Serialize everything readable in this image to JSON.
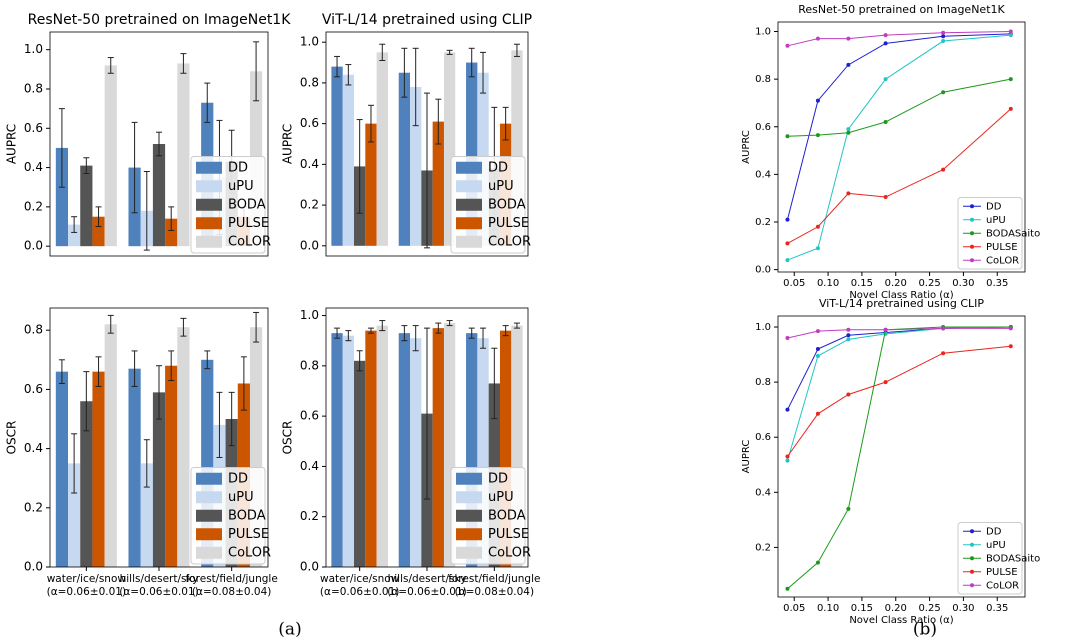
{
  "captions": [
    "(a)",
    "(b)"
  ],
  "chart_data": [
    {
      "type": "bar",
      "title": "ResNet-50 pretrained on ImageNet1K",
      "ylabel": "AUPRC",
      "categories": [
        null,
        null,
        null
      ],
      "ylim": [
        -0.05,
        1.09
      ],
      "yticks": [
        {
          "value": 0,
          "label": "0.0"
        },
        0.2,
        0.4,
        0.6,
        0.8,
        {
          "value": 1,
          "label": "1.0"
        }
      ],
      "legend": "lower right",
      "series": [
        {
          "name": "DD",
          "color": "#4f81bd",
          "values": [
            0.5,
            0.4,
            0.73
          ],
          "errors": [
            0.2,
            0.23,
            0.1
          ]
        },
        {
          "name": "uPU",
          "color": "#c6d9f1",
          "values": [
            0.11,
            0.18,
            0.35
          ],
          "errors": [
            0.04,
            0.2,
            0.29
          ]
        },
        {
          "name": "BODA",
          "color": "#555555",
          "values": [
            0.41,
            0.52,
            0.43
          ],
          "errors": [
            0.04,
            0.06,
            0.16
          ]
        },
        {
          "name": "PULSE",
          "color": "#cc5500",
          "values": [
            0.15,
            0.14,
            0.15
          ],
          "errors": [
            0.05,
            0.06,
            0.05
          ]
        },
        {
          "name": "CoLOR",
          "color": "#d9d9d9",
          "values": [
            0.92,
            0.93,
            0.89
          ],
          "errors": [
            0.04,
            0.05,
            0.15
          ]
        }
      ]
    },
    {
      "type": "bar",
      "title": "ViT-L/14 pretrained using CLIP",
      "ylabel": "AUPRC",
      "categories": [
        null,
        null,
        null
      ],
      "ylim": [
        -0.05,
        1.05
      ],
      "yticks": [
        {
          "value": 0,
          "label": "0.0"
        },
        0.2,
        0.4,
        0.6,
        0.8,
        {
          "value": 1,
          "label": "1.0"
        }
      ],
      "legend": "lower right",
      "series": [
        {
          "name": "DD",
          "color": "#4f81bd",
          "values": [
            0.88,
            0.85,
            0.9
          ],
          "errors": [
            0.05,
            0.12,
            0.07
          ]
        },
        {
          "name": "uPU",
          "color": "#c6d9f1",
          "values": [
            0.84,
            0.78,
            0.85
          ],
          "errors": [
            0.05,
            0.19,
            0.1
          ]
        },
        {
          "name": "BODA",
          "color": "#555555",
          "values": [
            0.39,
            0.37,
            0.38
          ],
          "errors": [
            0.23,
            0.38,
            0.3
          ]
        },
        {
          "name": "PULSE",
          "color": "#cc5500",
          "values": [
            0.6,
            0.61,
            0.6
          ],
          "errors": [
            0.09,
            0.11,
            0.08
          ]
        },
        {
          "name": "CoLOR",
          "color": "#d9d9d9",
          "values": [
            0.95,
            0.95,
            0.96
          ],
          "errors": [
            0.04,
            0.01,
            0.03
          ]
        }
      ]
    },
    {
      "type": "bar",
      "ylabel": "OSCR",
      "categories": [
        "water/ice/snow",
        "hills/desert/sky",
        "forest/field/jungle"
      ],
      "category_sublabels": [
        "(α=0.06±0.01)",
        "(α=0.06±0.01)",
        "(α=0.08±0.04)"
      ],
      "ylim": [
        0,
        0.875
      ],
      "yticks": [
        {
          "value": 0,
          "label": "0.0"
        },
        0.2,
        0.4,
        0.6,
        0.8
      ],
      "legend": "lower right",
      "series": [
        {
          "name": "DD",
          "color": "#4f81bd",
          "values": [
            0.66,
            0.67,
            0.7
          ],
          "errors": [
            0.04,
            0.06,
            0.03
          ]
        },
        {
          "name": "uPU",
          "color": "#c6d9f1",
          "values": [
            0.35,
            0.35,
            0.48
          ],
          "errors": [
            0.1,
            0.08,
            0.11
          ]
        },
        {
          "name": "BODA",
          "color": "#555555",
          "values": [
            0.56,
            0.59,
            0.5
          ],
          "errors": [
            0.1,
            0.09,
            0.09
          ]
        },
        {
          "name": "PULSE",
          "color": "#cc5500",
          "values": [
            0.66,
            0.68,
            0.62
          ],
          "errors": [
            0.05,
            0.05,
            0.09
          ]
        },
        {
          "name": "CoLOR",
          "color": "#d9d9d9",
          "values": [
            0.82,
            0.81,
            0.81
          ],
          "errors": [
            0.03,
            0.03,
            0.05
          ]
        }
      ]
    },
    {
      "type": "bar",
      "ylabel": "OSCR",
      "categories": [
        "water/ice/snow",
        "hills/desert/sky",
        "forest/field/jungle"
      ],
      "category_sublabels": [
        "(α=0.06±0.01)",
        "(α=0.06±0.01)",
        "(α=0.08±0.04)"
      ],
      "ylim": [
        0,
        1.03
      ],
      "yticks": [
        {
          "value": 0,
          "label": "0.0"
        },
        0.2,
        0.4,
        0.6,
        0.8,
        {
          "value": 1,
          "label": "1.0"
        }
      ],
      "legend": "lower right",
      "series": [
        {
          "name": "DD",
          "color": "#4f81bd",
          "values": [
            0.93,
            0.93,
            0.93
          ],
          "errors": [
            0.02,
            0.03,
            0.02
          ]
        },
        {
          "name": "uPU",
          "color": "#c6d9f1",
          "values": [
            0.92,
            0.91,
            0.91
          ],
          "errors": [
            0.02,
            0.05,
            0.04
          ]
        },
        {
          "name": "BODA",
          "color": "#555555",
          "values": [
            0.82,
            0.61,
            0.73
          ],
          "errors": [
            0.04,
            0.34,
            0.14
          ]
        },
        {
          "name": "PULSE",
          "color": "#cc5500",
          "values": [
            0.94,
            0.95,
            0.94
          ],
          "errors": [
            0.01,
            0.02,
            0.02
          ]
        },
        {
          "name": "CoLOR",
          "color": "#d9d9d9",
          "values": [
            0.96,
            0.97,
            0.96
          ],
          "errors": [
            0.02,
            0.01,
            0.01
          ]
        }
      ]
    },
    {
      "type": "line",
      "title": "ResNet-50 pretrained on ImageNet1K",
      "xlabel": "Novel Class Ratio (α)",
      "ylabel": "AUPRC",
      "x": [
        0.04,
        0.085,
        0.13,
        0.185,
        0.27,
        0.37
      ],
      "xlim": [
        0.026,
        0.391
      ],
      "xticks": [
        0.05,
        {
          "value": 0.1,
          "label": "0.10"
        },
        0.15,
        {
          "value": 0.2,
          "label": "0.20"
        },
        0.25,
        {
          "value": 0.3,
          "label": "0.30"
        },
        0.35
      ],
      "ylim": [
        -0.01,
        1.04
      ],
      "yticks": [
        {
          "value": 0,
          "label": "0.0"
        },
        0.2,
        0.4,
        0.6,
        0.8,
        {
          "value": 1,
          "label": "1.0"
        }
      ],
      "legend": "lower right",
      "series": [
        {
          "name": "DD",
          "color": "#1f1fd0",
          "values": [
            0.21,
            0.71,
            0.86,
            0.95,
            0.98,
            0.99
          ]
        },
        {
          "name": "uPU",
          "color": "#22c5c5",
          "values": [
            0.04,
            0.09,
            0.59,
            0.8,
            0.96,
            0.985
          ]
        },
        {
          "name": "BODASaito",
          "color": "#1a9a1a",
          "values": [
            0.56,
            0.565,
            0.575,
            0.62,
            0.745,
            0.8
          ]
        },
        {
          "name": "PULSE",
          "color": "#e8261f",
          "values": [
            0.11,
            0.18,
            0.32,
            0.305,
            0.42,
            0.675
          ]
        },
        {
          "name": "CoLOR",
          "color": "#c03cc0",
          "values": [
            0.94,
            0.97,
            0.97,
            0.985,
            0.995,
            1.0
          ]
        }
      ]
    },
    {
      "type": "line",
      "title": "ViT-L/14 pretrained using CLIP",
      "xlabel": "Novel Class Ratio (α)",
      "ylabel": "AUPRC",
      "x": [
        0.04,
        0.085,
        0.13,
        0.185,
        0.27,
        0.37
      ],
      "xlim": [
        0.026,
        0.391
      ],
      "xticks": [
        0.05,
        {
          "value": 0.1,
          "label": "0.10"
        },
        0.15,
        {
          "value": 0.2,
          "label": "0.20"
        },
        0.25,
        {
          "value": 0.3,
          "label": "0.30"
        },
        0.35
      ],
      "ylim": [
        0.02,
        1.04
      ],
      "yticks": [
        0.2,
        0.4,
        0.6,
        0.8,
        {
          "value": 1,
          "label": "1.0"
        }
      ],
      "legend": "lower right",
      "series": [
        {
          "name": "DD",
          "color": "#1f1fd0",
          "values": [
            0.7,
            0.92,
            0.97,
            0.98,
            0.995,
            1.0
          ]
        },
        {
          "name": "uPU",
          "color": "#22c5c5",
          "values": [
            0.515,
            0.895,
            0.955,
            0.975,
            0.995,
            1.0
          ]
        },
        {
          "name": "BODASaito",
          "color": "#1a9a1a",
          "values": [
            0.05,
            0.145,
            0.34,
            0.99,
            1.0,
            1.0
          ]
        },
        {
          "name": "PULSE",
          "color": "#e8261f",
          "values": [
            0.53,
            0.685,
            0.755,
            0.8,
            0.905,
            0.93
          ]
        },
        {
          "name": "CoLOR",
          "color": "#c03cc0",
          "values": [
            0.96,
            0.985,
            0.99,
            0.99,
            0.995,
            0.995
          ]
        }
      ]
    }
  ]
}
